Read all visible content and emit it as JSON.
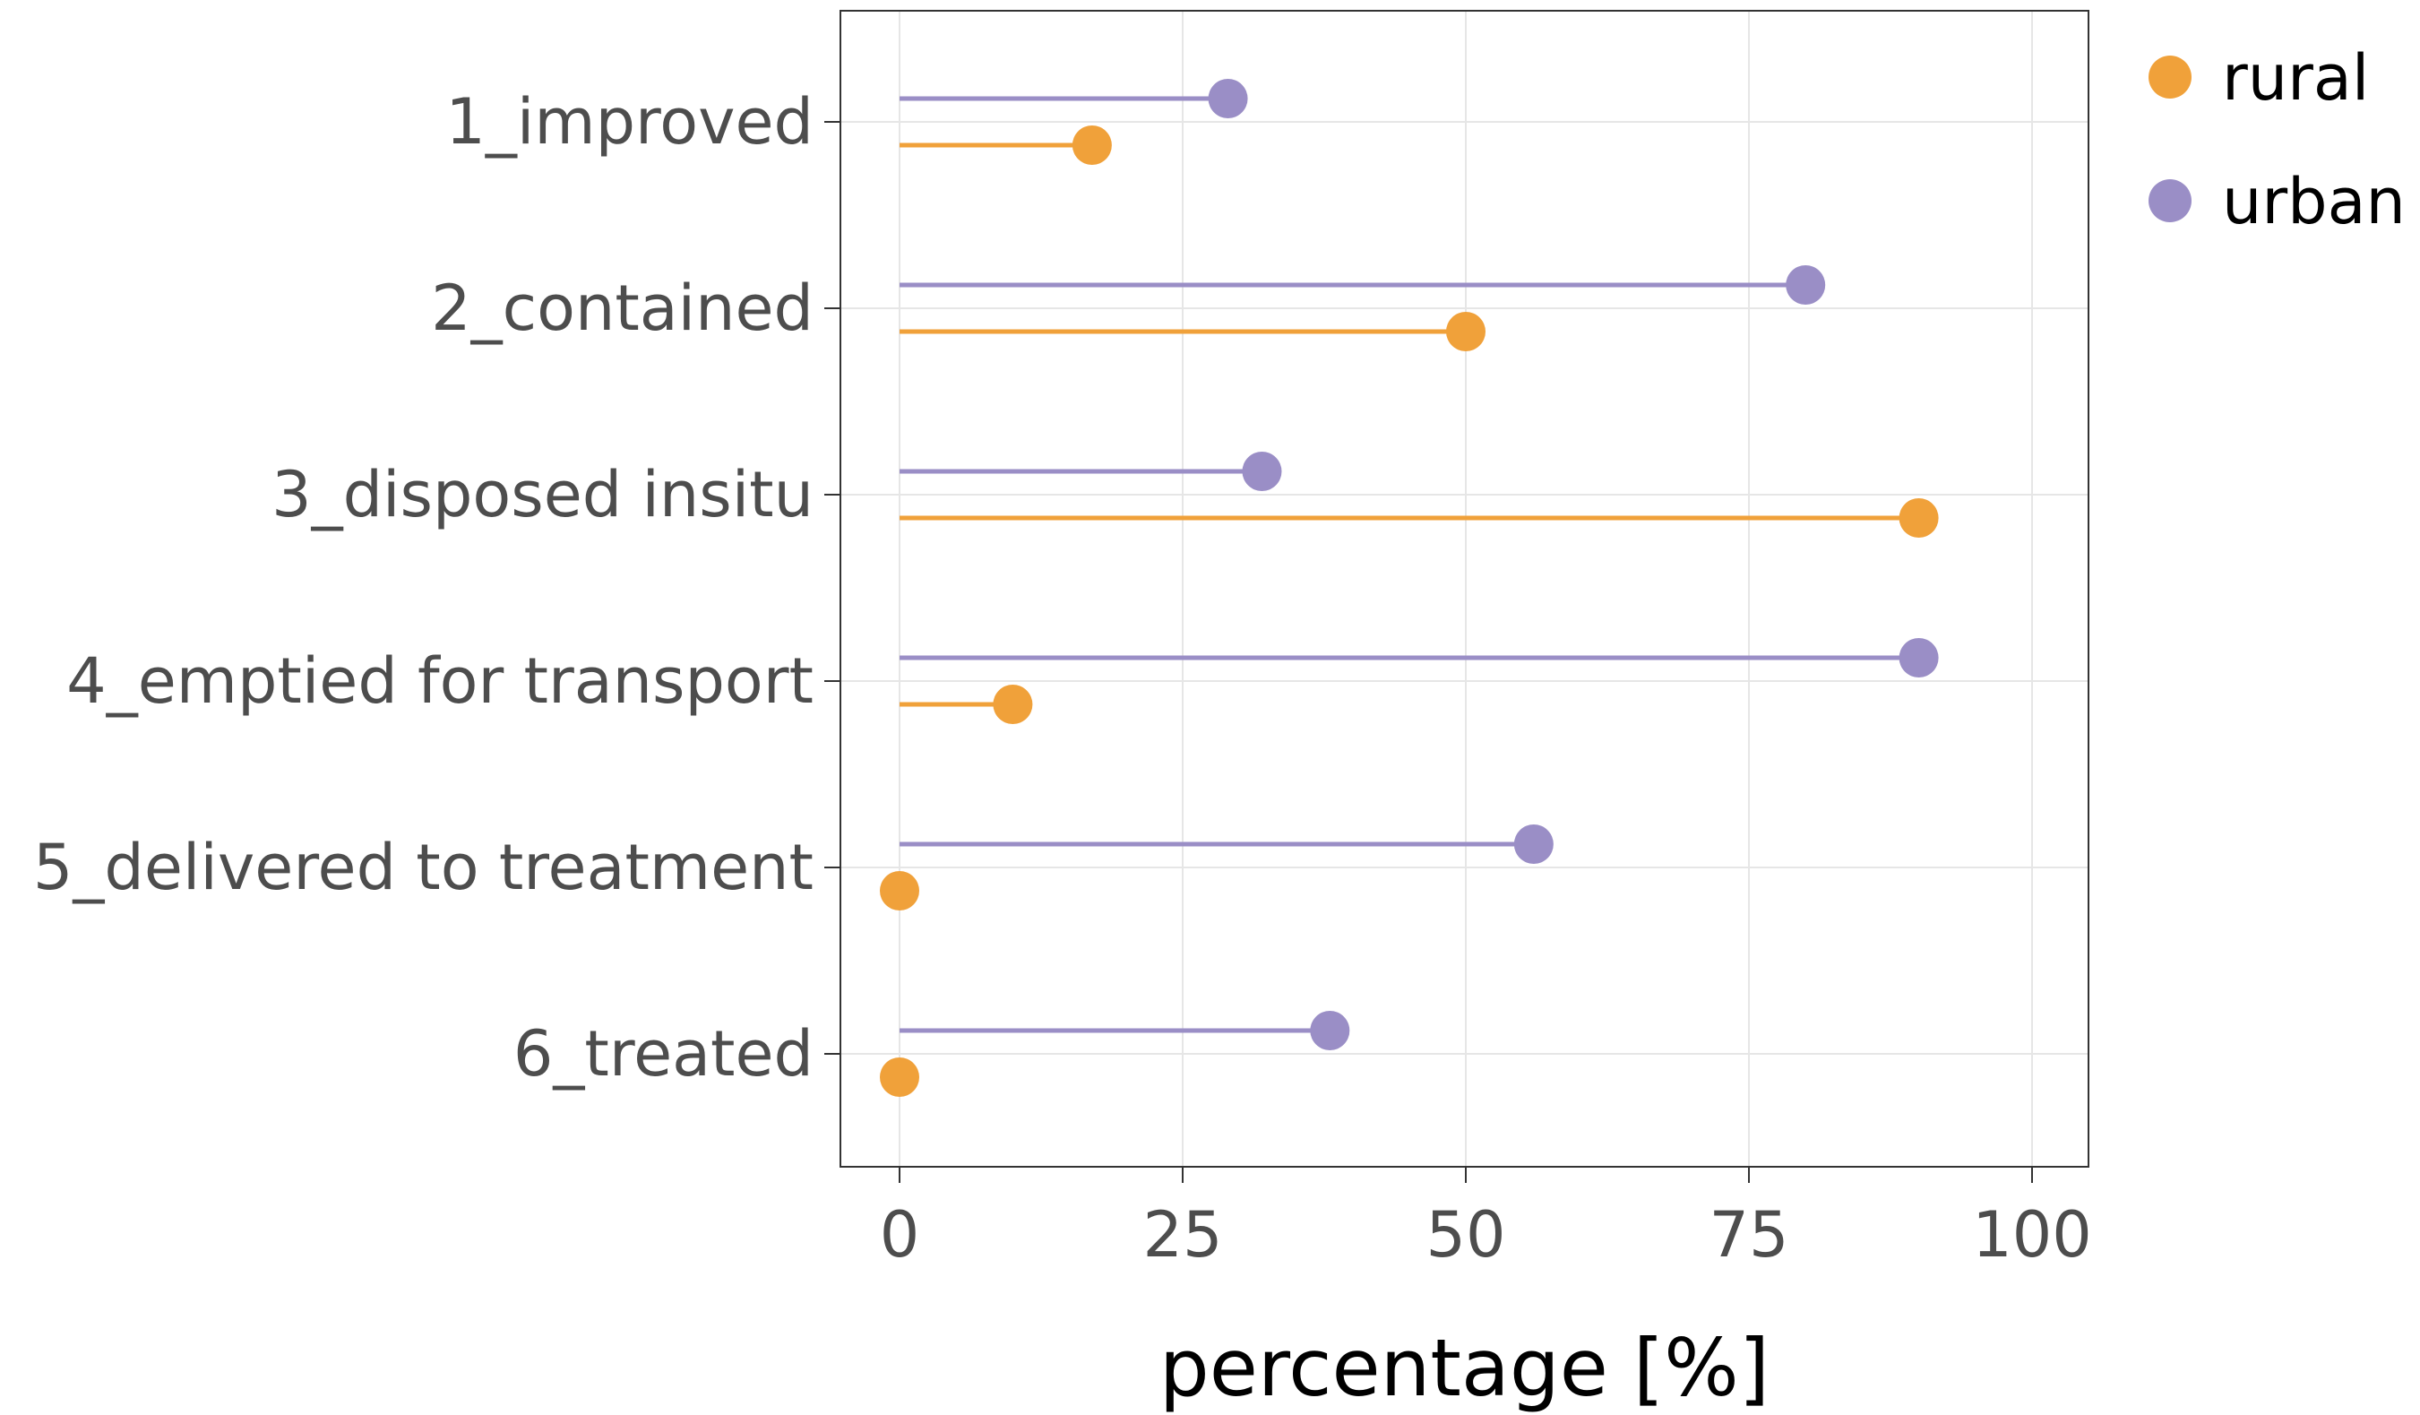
{
  "chart_data": {
    "type": "lollipop",
    "xlabel": "percentage [%]",
    "ylabel": "",
    "xlim": [
      -5,
      105
    ],
    "xticks": [
      "0",
      "25",
      "50",
      "75",
      "100"
    ],
    "xtick_values": [
      0,
      25,
      50,
      75,
      100
    ],
    "grid": true,
    "legend_position": "right",
    "categories": [
      "1_improved",
      "2_contained",
      "3_disposed insitu",
      "4_emptied for transport",
      "5_delivered to treatment",
      "6_treated"
    ],
    "series": [
      {
        "name": "rural",
        "color": "#F0A13A",
        "values": [
          17,
          50,
          90,
          10,
          0,
          0
        ]
      },
      {
        "name": "urban",
        "color": "#9A8EC6",
        "values": [
          29,
          80,
          32,
          90,
          56,
          38
        ]
      }
    ]
  }
}
